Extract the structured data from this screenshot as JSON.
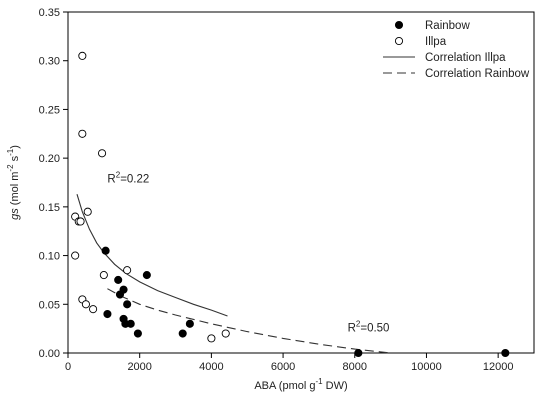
{
  "chart_data": {
    "type": "scatter",
    "xlabel": {
      "prefix": "ABA (pmol g",
      "sup": "-1",
      "suffix": " DW)"
    },
    "ylabel": {
      "italic": "gs",
      "pre": " (mol m",
      "sup1": "-2",
      "mid": " s",
      "sup2": "-1",
      "post": ")"
    },
    "xlim": [
      0,
      13000
    ],
    "ylim": [
      0,
      0.35
    ],
    "xticks": [
      0,
      2000,
      4000,
      6000,
      8000,
      10000,
      12000
    ],
    "yticks": [
      0.0,
      0.05,
      0.1,
      0.15,
      0.2,
      0.25,
      0.3,
      0.35
    ],
    "xtick_labels": [
      "0",
      "2000",
      "4000",
      "6000",
      "8000",
      "10000",
      "12000"
    ],
    "ytick_labels": [
      "0.00",
      "0.05",
      "0.10",
      "0.15",
      "0.20",
      "0.25",
      "0.30",
      "0.35"
    ],
    "grid": false,
    "legend_position": "top-right",
    "series": [
      {
        "name": "Rainbow",
        "marker": "filled-circle",
        "color": "#000000",
        "points": [
          [
            1050,
            0.105
          ],
          [
            2200,
            0.08
          ],
          [
            1400,
            0.075
          ],
          [
            1450,
            0.06
          ],
          [
            1550,
            0.065
          ],
          [
            1650,
            0.05
          ],
          [
            1100,
            0.04
          ],
          [
            1550,
            0.035
          ],
          [
            1600,
            0.03
          ],
          [
            1750,
            0.03
          ],
          [
            1950,
            0.02
          ],
          [
            3200,
            0.02
          ],
          [
            3400,
            0.03
          ],
          [
            8100,
            0.0
          ],
          [
            12200,
            0.0
          ]
        ]
      },
      {
        "name": "Illpa",
        "marker": "open-circle",
        "color": "#000000",
        "points": [
          [
            400,
            0.305
          ],
          [
            400,
            0.225
          ],
          [
            950,
            0.205
          ],
          [
            200,
            0.14
          ],
          [
            300,
            0.135
          ],
          [
            350,
            0.135
          ],
          [
            550,
            0.145
          ],
          [
            200,
            0.1
          ],
          [
            1000,
            0.08
          ],
          [
            1650,
            0.085
          ],
          [
            400,
            0.055
          ],
          [
            500,
            0.05
          ],
          [
            700,
            0.045
          ],
          [
            4000,
            0.015
          ],
          [
            4400,
            0.02
          ]
        ]
      }
    ],
    "fits": [
      {
        "name": "Correlation Illpa",
        "style": "solid",
        "points": [
          [
            250,
            0.163
          ],
          [
            400,
            0.145
          ],
          [
            600,
            0.127
          ],
          [
            800,
            0.113
          ],
          [
            1000,
            0.103
          ],
          [
            1300,
            0.091
          ],
          [
            1600,
            0.082
          ],
          [
            2000,
            0.073
          ],
          [
            2500,
            0.064
          ],
          [
            3000,
            0.057
          ],
          [
            3500,
            0.05
          ],
          [
            4000,
            0.044
          ],
          [
            4450,
            0.038
          ]
        ]
      },
      {
        "name": "Correlation Rainbow",
        "style": "dashed",
        "points": [
          [
            1100,
            0.066
          ],
          [
            1500,
            0.058
          ],
          [
            2000,
            0.05
          ],
          [
            2500,
            0.044
          ],
          [
            3000,
            0.039
          ],
          [
            4000,
            0.03
          ],
          [
            5000,
            0.022
          ],
          [
            6000,
            0.015
          ],
          [
            7000,
            0.009
          ],
          [
            8000,
            0.004
          ],
          [
            9000,
            0.0
          ]
        ]
      }
    ],
    "annotations": [
      {
        "label": "R2=0.22",
        "base": "R",
        "sup": "2",
        "rest": "=0.22",
        "x": 1100,
        "y": 0.175
      },
      {
        "label": "R2=0.50",
        "base": "R",
        "sup": "2",
        "rest": "=0.50",
        "x": 7800,
        "y": 0.022
      }
    ]
  }
}
